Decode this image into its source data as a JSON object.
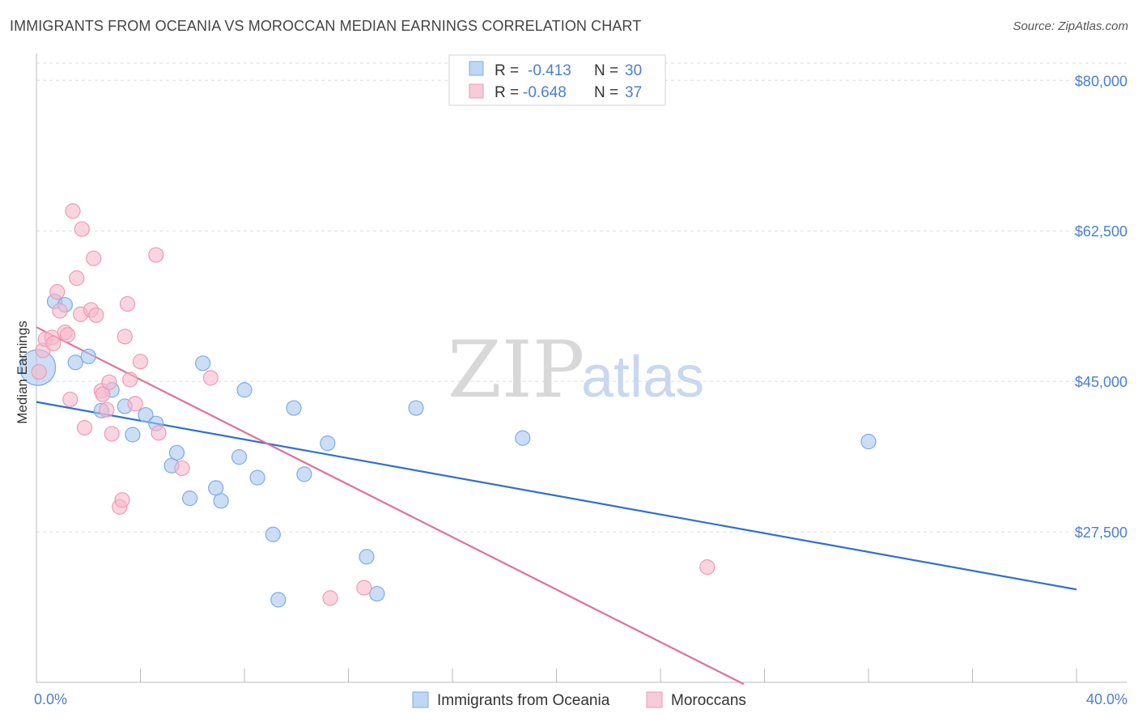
{
  "title": "IMMIGRANTS FROM OCEANIA VS MOROCCAN MEDIAN EARNINGS CORRELATION CHART",
  "source": "Source: ZipAtlas.com",
  "watermark": {
    "zip": "ZIP",
    "atlas": "atlas"
  },
  "legend": {
    "rows": [
      {
        "r_label": "R =",
        "r_value": "-0.413",
        "n_label": "N =",
        "n_value": "30",
        "color": "#a9c8f0"
      },
      {
        "r_label": "R =",
        "r_value": "-0.648",
        "n_label": "N =",
        "n_value": "37",
        "color": "#f6b9cc"
      }
    ]
  },
  "chart_data": {
    "type": "scatter",
    "title": "IMMIGRANTS FROM OCEANIA VS MOROCCAN MEDIAN EARNINGS CORRELATION CHART",
    "xlabel": "",
    "ylabel": "Median Earnings",
    "xlim": [
      0,
      40
    ],
    "ylim": [
      10000,
      82000
    ],
    "x_tick_labels": [
      {
        "value": 0,
        "label": "0.0%"
      },
      {
        "value": 40,
        "label": "40.0%"
      }
    ],
    "y_ticks": [
      {
        "value": 27500,
        "label": "$27,500"
      },
      {
        "value": 45000,
        "label": "$45,000"
      },
      {
        "value": 62500,
        "label": "$62,500"
      },
      {
        "value": 80000,
        "label": "$80,000"
      }
    ],
    "grid": true,
    "series": [
      {
        "name": "Immigrants from Oceania",
        "color": "#a9c8f0",
        "stroke": "#7eaae6",
        "line_color": "#2f6fd0",
        "trend": {
          "x": [
            0,
            40
          ],
          "y": [
            42600,
            20800
          ]
        },
        "points": [
          {
            "x": 0.05,
            "y": 46600,
            "big": true
          },
          {
            "x": 0.7,
            "y": 54300
          },
          {
            "x": 1.1,
            "y": 53900
          },
          {
            "x": 1.5,
            "y": 47200
          },
          {
            "x": 2.0,
            "y": 47900
          },
          {
            "x": 2.9,
            "y": 44000
          },
          {
            "x": 2.5,
            "y": 41600
          },
          {
            "x": 3.4,
            "y": 42100
          },
          {
            "x": 3.7,
            "y": 38800
          },
          {
            "x": 4.2,
            "y": 41100
          },
          {
            "x": 4.6,
            "y": 40100
          },
          {
            "x": 5.2,
            "y": 35200
          },
          {
            "x": 5.4,
            "y": 36700
          },
          {
            "x": 5.9,
            "y": 31400
          },
          {
            "x": 6.4,
            "y": 47100
          },
          {
            "x": 6.9,
            "y": 32600
          },
          {
            "x": 7.1,
            "y": 31100
          },
          {
            "x": 7.8,
            "y": 36200
          },
          {
            "x": 8.0,
            "y": 44000
          },
          {
            "x": 8.5,
            "y": 33800
          },
          {
            "x": 9.1,
            "y": 27200
          },
          {
            "x": 9.3,
            "y": 19600
          },
          {
            "x": 9.9,
            "y": 41900
          },
          {
            "x": 10.3,
            "y": 34200
          },
          {
            "x": 11.2,
            "y": 37800
          },
          {
            "x": 12.7,
            "y": 24600
          },
          {
            "x": 13.1,
            "y": 20300
          },
          {
            "x": 14.6,
            "y": 41900
          },
          {
            "x": 18.7,
            "y": 38400
          },
          {
            "x": 32.0,
            "y": 38000
          }
        ]
      },
      {
        "name": "Moroccans",
        "color": "#f6b9cc",
        "stroke": "#ee9ab4",
        "line_color": "#e0709a",
        "trend": {
          "x": [
            0,
            27.2
          ],
          "y": [
            51300,
            9800
          ]
        },
        "points": [
          {
            "x": 0.1,
            "y": 46100
          },
          {
            "x": 0.25,
            "y": 48600
          },
          {
            "x": 0.35,
            "y": 49900
          },
          {
            "x": 0.6,
            "y": 50100
          },
          {
            "x": 0.65,
            "y": 49400
          },
          {
            "x": 0.8,
            "y": 55400
          },
          {
            "x": 0.9,
            "y": 53200
          },
          {
            "x": 1.1,
            "y": 50700
          },
          {
            "x": 1.2,
            "y": 50400
          },
          {
            "x": 1.3,
            "y": 42900
          },
          {
            "x": 1.4,
            "y": 64800
          },
          {
            "x": 1.55,
            "y": 57000
          },
          {
            "x": 1.7,
            "y": 52800
          },
          {
            "x": 1.75,
            "y": 62700
          },
          {
            "x": 1.85,
            "y": 39600
          },
          {
            "x": 2.1,
            "y": 53300
          },
          {
            "x": 2.2,
            "y": 59300
          },
          {
            "x": 2.3,
            "y": 52700
          },
          {
            "x": 2.5,
            "y": 43900
          },
          {
            "x": 2.55,
            "y": 43500
          },
          {
            "x": 2.7,
            "y": 41700
          },
          {
            "x": 2.8,
            "y": 44900
          },
          {
            "x": 2.9,
            "y": 38900
          },
          {
            "x": 3.2,
            "y": 30400
          },
          {
            "x": 3.3,
            "y": 31200
          },
          {
            "x": 3.4,
            "y": 50200
          },
          {
            "x": 3.5,
            "y": 54000
          },
          {
            "x": 3.6,
            "y": 45200
          },
          {
            "x": 3.8,
            "y": 42400
          },
          {
            "x": 4.0,
            "y": 47300
          },
          {
            "x": 4.6,
            "y": 59700
          },
          {
            "x": 4.7,
            "y": 39000
          },
          {
            "x": 5.6,
            "y": 34900
          },
          {
            "x": 6.7,
            "y": 45400
          },
          {
            "x": 11.3,
            "y": 19800
          },
          {
            "x": 12.6,
            "y": 21000
          },
          {
            "x": 25.8,
            "y": 23400
          }
        ]
      }
    ]
  }
}
